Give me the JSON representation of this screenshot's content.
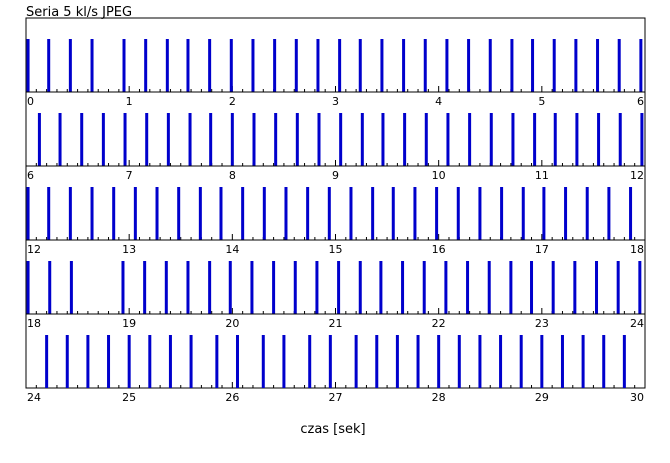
{
  "chart_data": {
    "type": "bar",
    "title": "Seria 5 kl/s JPEG",
    "xlabel": "czas [sek]",
    "ylabel": "",
    "bar_color": "#0000cc",
    "tick_color": "#000000",
    "panels": [
      {
        "xlim": [
          0,
          6
        ],
        "tick_labels": [
          "0",
          "1",
          "2",
          "3",
          "4",
          "5",
          "6"
        ],
        "frames": [
          0.02,
          0.22,
          0.43,
          0.64,
          0.95,
          1.16,
          1.37,
          1.57,
          1.78,
          1.99,
          2.2,
          2.41,
          2.62,
          2.83,
          3.04,
          3.24,
          3.45,
          3.66,
          3.87,
          4.08,
          4.29,
          4.5,
          4.71,
          4.91,
          5.12,
          5.33,
          5.54,
          5.75,
          5.96,
          6.08
        ]
      },
      {
        "xlim": [
          6,
          12
        ],
        "tick_labels": [
          "6",
          "7",
          "8",
          "9",
          "10",
          "11",
          "12"
        ],
        "frames": [
          6.13,
          6.33,
          6.54,
          6.75,
          6.96,
          7.17,
          7.38,
          7.59,
          7.79,
          8.0,
          8.21,
          8.42,
          8.63,
          8.84,
          9.05,
          9.26,
          9.46,
          9.67,
          9.88,
          10.09,
          10.3,
          10.51,
          10.72,
          10.93,
          11.13,
          11.34,
          11.55,
          11.76,
          11.97
        ]
      },
      {
        "xlim": [
          12,
          18
        ],
        "tick_labels": [
          "12",
          "13",
          "14",
          "15",
          "16",
          "17",
          "18"
        ],
        "frames": [
          12.02,
          12.22,
          12.43,
          12.64,
          12.85,
          13.06,
          13.27,
          13.48,
          13.69,
          13.89,
          14.1,
          14.31,
          14.52,
          14.73,
          14.94,
          15.15,
          15.36,
          15.56,
          15.77,
          15.98,
          16.19,
          16.4,
          16.61,
          16.82,
          17.02,
          17.23,
          17.44,
          17.65,
          17.86,
          18.07
        ]
      },
      {
        "xlim": [
          18,
          24
        ],
        "tick_labels": [
          "18",
          "19",
          "20",
          "21",
          "22",
          "23",
          "24"
        ],
        "frames": [
          18.02,
          18.23,
          18.44,
          18.94,
          19.15,
          19.36,
          19.57,
          19.78,
          19.98,
          20.19,
          20.4,
          20.61,
          20.82,
          21.03,
          21.24,
          21.44,
          21.65,
          21.86,
          22.07,
          22.28,
          22.49,
          22.7,
          22.9,
          23.11,
          23.32,
          23.53,
          23.74,
          23.95
        ]
      },
      {
        "xlim": [
          24,
          30
        ],
        "tick_labels": [
          "24",
          "25",
          "26",
          "27",
          "28",
          "29",
          "30"
        ],
        "frames": [
          24.2,
          24.4,
          24.6,
          24.8,
          25.0,
          25.2,
          25.4,
          25.6,
          25.85,
          26.05,
          26.3,
          26.5,
          26.75,
          26.95,
          27.2,
          27.4,
          27.6,
          27.8,
          28.0,
          28.2,
          28.4,
          28.6,
          28.8,
          29.0,
          29.2,
          29.4,
          29.6,
          29.8
        ]
      }
    ]
  }
}
